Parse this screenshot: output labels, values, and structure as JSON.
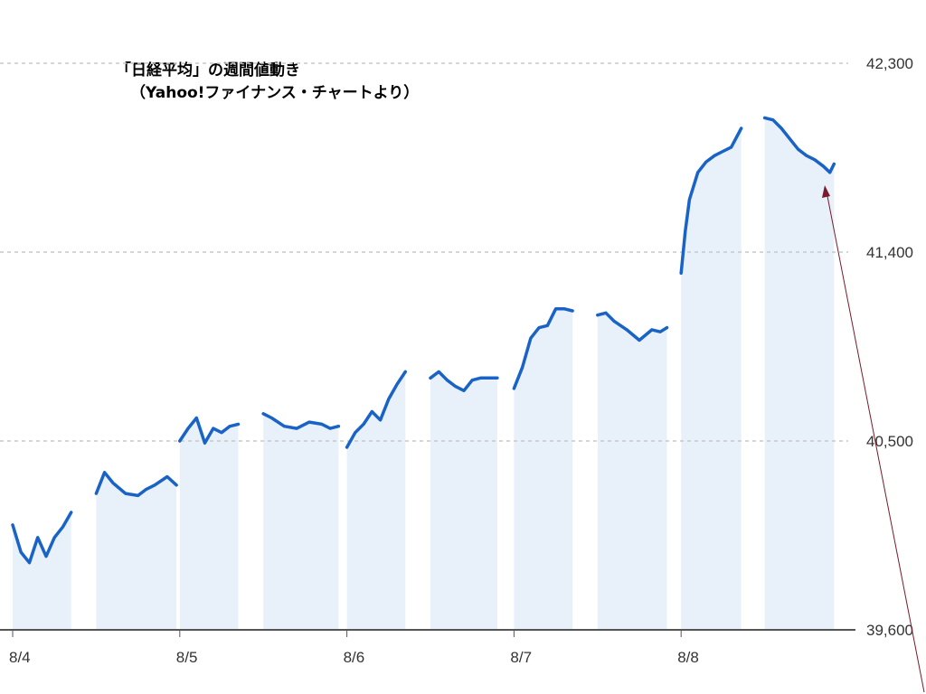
{
  "chart_data": {
    "type": "area",
    "title": "「日経平均」の週間値動き",
    "subtitle": "（Yahoo!ファイナンス・チャートより）",
    "xlabel": "",
    "ylabel": "",
    "ylim": [
      39600,
      42300
    ],
    "yticks": [
      {
        "value": 42300,
        "label": "42,300"
      },
      {
        "value": 41400,
        "label": "41,400"
      },
      {
        "value": 40500,
        "label": "40,500"
      },
      {
        "value": 39600,
        "label": "39,600"
      }
    ],
    "grid": true,
    "line_color": "#1a63c6",
    "fill_color": "#e8f1fa",
    "x_range": [
      0,
      10
    ],
    "categories": [
      "8/4",
      "8/5",
      "8/6",
      "8/7",
      "8/8"
    ],
    "category_positions": [
      0,
      2,
      4,
      6,
      8
    ],
    "sessions": [
      {
        "day": "8/4",
        "part": "AM",
        "x": [
          0.0,
          0.1,
          0.2,
          0.3,
          0.4,
          0.5,
          0.6,
          0.7
        ],
        "y": [
          40100,
          39970,
          39920,
          40040,
          39950,
          40040,
          40090,
          40160
        ]
      },
      {
        "day": "8/4",
        "part": "PM",
        "x": [
          1.0,
          1.1,
          1.2,
          1.35,
          1.5,
          1.6,
          1.7,
          1.85,
          1.96
        ],
        "y": [
          40250,
          40350,
          40300,
          40250,
          40240,
          40270,
          40290,
          40330,
          40290
        ]
      },
      {
        "day": "8/5",
        "part": "AM",
        "x": [
          2.0,
          2.1,
          2.2,
          2.3,
          2.4,
          2.5,
          2.6,
          2.7
        ],
        "y": [
          40500,
          40560,
          40610,
          40490,
          40560,
          40540,
          40570,
          40580
        ]
      },
      {
        "day": "8/5",
        "part": "PM",
        "x": [
          3.0,
          3.1,
          3.25,
          3.4,
          3.55,
          3.7,
          3.8,
          3.9
        ],
        "y": [
          40630,
          40610,
          40570,
          40560,
          40590,
          40580,
          40560,
          40570
        ]
      },
      {
        "day": "8/6",
        "part": "AM",
        "x": [
          4.0,
          4.1,
          4.2,
          4.3,
          4.4,
          4.5,
          4.6,
          4.7
        ],
        "y": [
          40470,
          40540,
          40580,
          40640,
          40600,
          40700,
          40770,
          40830
        ]
      },
      {
        "day": "8/6",
        "part": "PM",
        "x": [
          5.0,
          5.1,
          5.2,
          5.3,
          5.4,
          5.5,
          5.6,
          5.8
        ],
        "y": [
          40800,
          40830,
          40790,
          40760,
          40740,
          40790,
          40800,
          40800
        ]
      },
      {
        "day": "8/7",
        "part": "AM",
        "x": [
          6.0,
          6.1,
          6.2,
          6.3,
          6.4,
          6.5,
          6.6,
          6.7
        ],
        "y": [
          40750,
          40850,
          40990,
          41040,
          41050,
          41130,
          41130,
          41120
        ]
      },
      {
        "day": "8/7",
        "part": "PM",
        "x": [
          7.0,
          7.1,
          7.2,
          7.35,
          7.5,
          7.65,
          7.75,
          7.83
        ],
        "y": [
          41100,
          41110,
          41070,
          41030,
          40980,
          41030,
          41020,
          41040
        ]
      },
      {
        "day": "8/8",
        "part": "AM",
        "x": [
          8.0,
          8.05,
          8.1,
          8.2,
          8.3,
          8.4,
          8.5,
          8.6,
          8.72
        ],
        "y": [
          41300,
          41500,
          41650,
          41780,
          41830,
          41860,
          41880,
          41900,
          41990
        ]
      },
      {
        "day": "8/8",
        "part": "PM",
        "x": [
          9.0,
          9.1,
          9.2,
          9.3,
          9.4,
          9.5,
          9.6,
          9.7,
          9.78,
          9.83
        ],
        "y": [
          42040,
          42030,
          41990,
          41940,
          41890,
          41860,
          41840,
          41810,
          41780,
          41820
        ]
      }
    ]
  }
}
